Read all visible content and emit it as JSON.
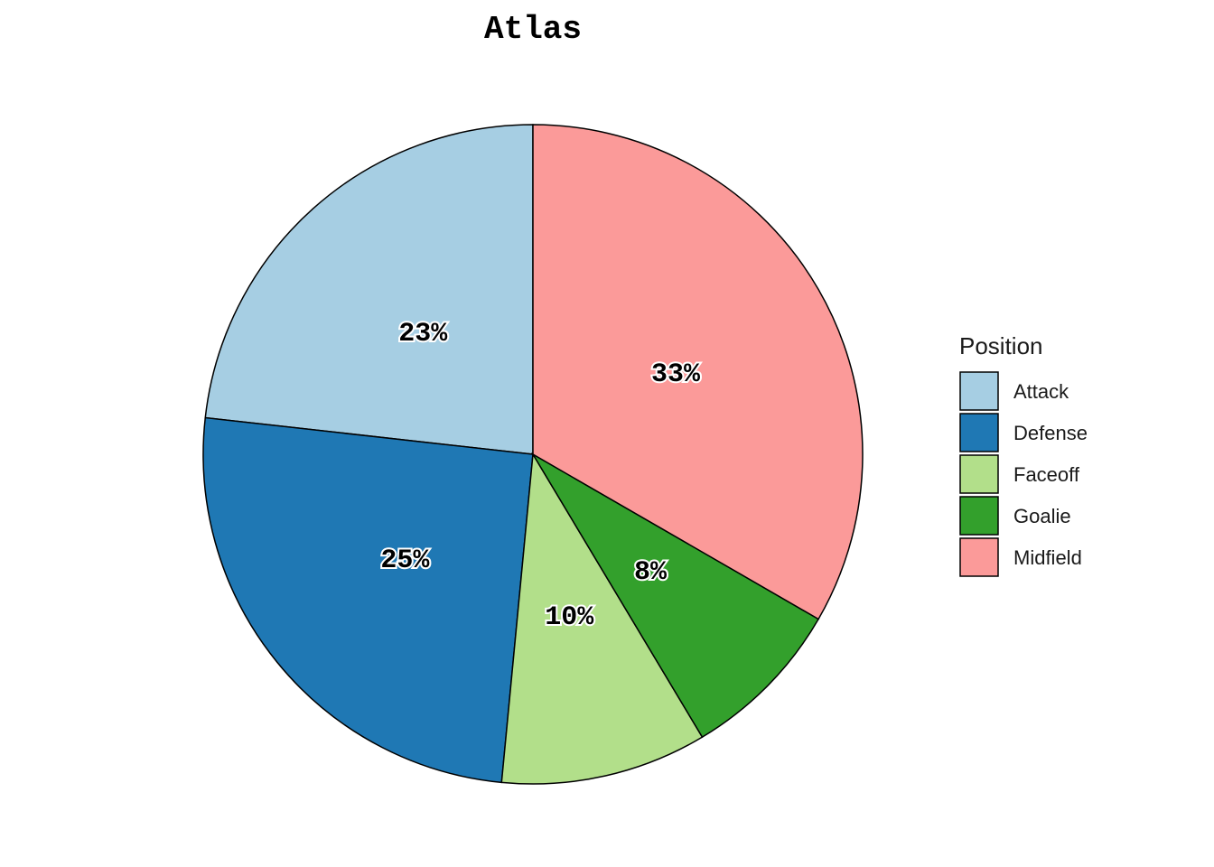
{
  "chart_data": {
    "type": "pie",
    "title": "Atlas",
    "legend_title": "Position",
    "categories": [
      "Attack",
      "Defense",
      "Faceoff",
      "Goalie",
      "Midfield"
    ],
    "values": [
      23,
      25,
      10,
      8,
      33
    ],
    "value_labels": [
      "23%",
      "25%",
      "10%",
      "8%",
      "33%"
    ],
    "colors": [
      "#a6cee3",
      "#1f78b4",
      "#b2df8a",
      "#33a02c",
      "#fb9a99"
    ],
    "legend": "right"
  }
}
